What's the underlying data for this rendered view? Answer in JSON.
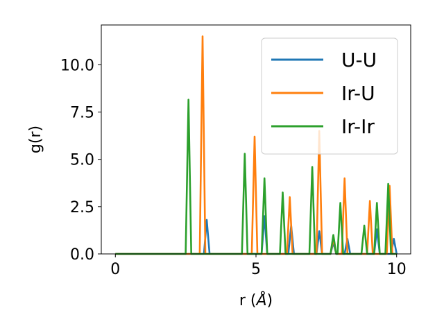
{
  "chart_data": {
    "type": "line",
    "xlabel": "r (Å)",
    "xlabel_main": "r (",
    "xlabel_unit": "Å",
    "xlabel_close": ")",
    "ylabel": "g(r)",
    "xlim": [
      -0.5,
      10.5
    ],
    "ylim": [
      0,
      12.1
    ],
    "xticks": [
      0,
      5,
      10
    ],
    "xtick_labels": [
      "0",
      "5",
      "10"
    ],
    "yticks": [
      0,
      2.5,
      5,
      7.5,
      10
    ],
    "ytick_labels": [
      "0.0",
      "2.5",
      "5.0",
      "7.5",
      "10.0"
    ],
    "grid": false,
    "legend_position": "top-right",
    "series": [
      {
        "name": "U-U",
        "color": "#1f77b4",
        "peaks": [
          [
            3.25,
            1.8
          ],
          [
            5.3,
            2.0
          ],
          [
            6.25,
            1.5
          ],
          [
            7.25,
            1.2
          ],
          [
            7.75,
            0.6
          ],
          [
            8.25,
            0.8
          ],
          [
            9.3,
            1.3
          ],
          [
            9.9,
            0.8
          ]
        ]
      },
      {
        "name": "Ir-U",
        "color": "#ff7f0e",
        "peaks": [
          [
            3.1,
            11.5
          ],
          [
            4.95,
            6.2
          ],
          [
            6.2,
            3.0
          ],
          [
            7.25,
            6.5
          ],
          [
            7.75,
            0.8
          ],
          [
            8.15,
            4.0
          ],
          [
            9.05,
            2.8
          ],
          [
            9.75,
            3.6
          ]
        ]
      },
      {
        "name": "Ir-Ir",
        "color": "#2ca02c",
        "peaks": [
          [
            2.6,
            8.15
          ],
          [
            4.6,
            5.3
          ],
          [
            5.3,
            4.0
          ],
          [
            5.95,
            3.25
          ],
          [
            7.0,
            4.6
          ],
          [
            7.75,
            1.0
          ],
          [
            8.0,
            2.7
          ],
          [
            8.85,
            1.5
          ],
          [
            9.3,
            2.7
          ],
          [
            9.7,
            3.7
          ]
        ]
      }
    ]
  }
}
